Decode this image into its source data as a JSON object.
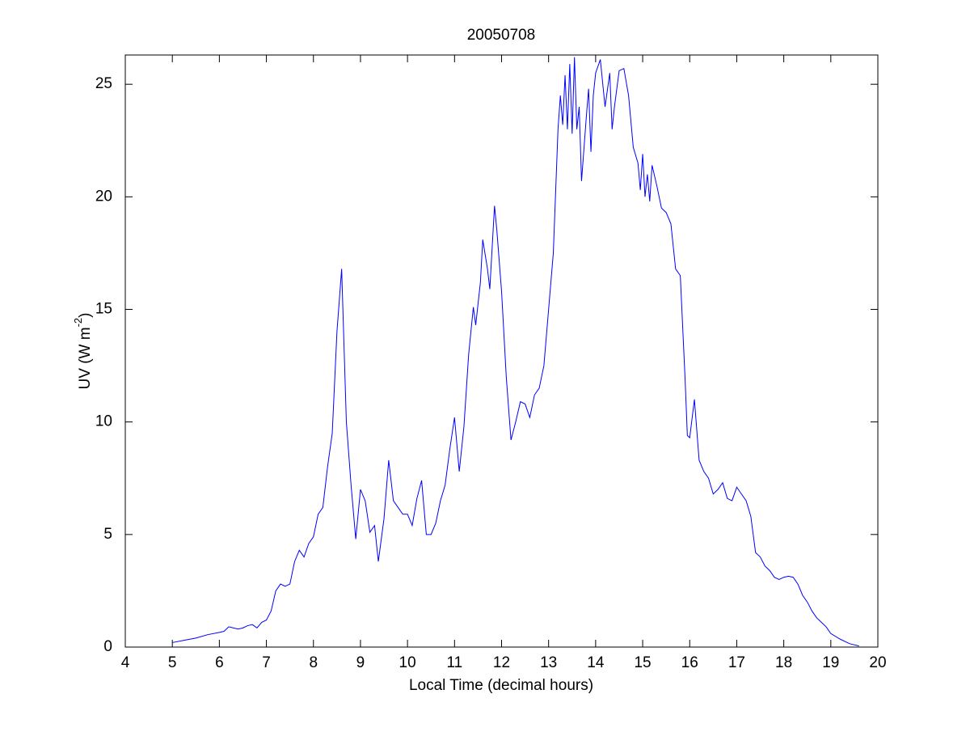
{
  "chart_data": {
    "type": "line",
    "title": "20050708",
    "x_label": "Local Time (decimal hours)",
    "y_label": [
      "UV (W m",
      "-2",
      ")"
    ],
    "x": [
      5.0,
      5.25,
      5.5,
      5.75,
      6.0,
      6.1,
      6.2,
      6.3,
      6.4,
      6.5,
      6.6,
      6.7,
      6.8,
      6.9,
      7.0,
      7.1,
      7.2,
      7.3,
      7.4,
      7.5,
      7.6,
      7.7,
      7.8,
      7.9,
      8.0,
      8.1,
      8.2,
      8.3,
      8.4,
      8.5,
      8.6,
      8.7,
      8.8,
      8.9,
      9.0,
      9.1,
      9.2,
      9.3,
      9.38,
      9.5,
      9.6,
      9.7,
      9.8,
      9.9,
      10.0,
      10.1,
      10.2,
      10.3,
      10.4,
      10.5,
      10.6,
      10.7,
      10.8,
      10.9,
      11.0,
      11.1,
      11.2,
      11.3,
      11.4,
      11.45,
      11.55,
      11.6,
      11.7,
      11.75,
      11.85,
      11.9,
      12.0,
      12.1,
      12.2,
      12.3,
      12.4,
      12.5,
      12.6,
      12.7,
      12.8,
      12.9,
      13.0,
      13.1,
      13.2,
      13.25,
      13.3,
      13.35,
      13.4,
      13.45,
      13.5,
      13.55,
      13.6,
      13.65,
      13.7,
      13.8,
      13.85,
      13.9,
      13.95,
      14.0,
      14.1,
      14.2,
      14.3,
      14.35,
      14.4,
      14.5,
      14.6,
      14.7,
      14.8,
      14.9,
      14.95,
      15.0,
      15.05,
      15.1,
      15.15,
      15.2,
      15.3,
      15.4,
      15.5,
      15.6,
      15.7,
      15.8,
      15.9,
      15.95,
      16.0,
      16.1,
      16.2,
      16.3,
      16.4,
      16.5,
      16.6,
      16.7,
      16.8,
      16.9,
      17.0,
      17.1,
      17.2,
      17.3,
      17.4,
      17.5,
      17.6,
      17.7,
      17.8,
      17.9,
      18.0,
      18.1,
      18.2,
      18.3,
      18.4,
      18.5,
      18.6,
      18.7,
      18.8,
      18.9,
      19.0,
      19.2,
      19.4,
      19.6
    ],
    "series": [
      {
        "color": "#0000ff",
        "values": [
          0.2,
          0.3,
          0.4,
          0.55,
          0.65,
          0.7,
          0.9,
          0.85,
          0.8,
          0.85,
          0.95,
          1.0,
          0.85,
          1.1,
          1.2,
          1.6,
          2.5,
          2.8,
          2.7,
          2.8,
          3.8,
          4.3,
          4.0,
          4.6,
          4.9,
          5.9,
          6.2,
          8.0,
          9.5,
          14.0,
          16.8,
          10.0,
          7.2,
          4.8,
          7.0,
          6.5,
          5.1,
          5.4,
          3.8,
          5.7,
          8.3,
          6.5,
          6.2,
          5.9,
          5.9,
          5.4,
          6.6,
          7.4,
          5.0,
          5.0,
          5.5,
          6.5,
          7.2,
          8.8,
          10.2,
          7.8,
          9.8,
          13.0,
          15.1,
          14.3,
          16.2,
          18.1,
          16.8,
          15.9,
          19.6,
          18.5,
          15.8,
          12.0,
          9.2,
          10.0,
          10.9,
          10.8,
          10.2,
          11.2,
          11.5,
          12.5,
          15.0,
          17.5,
          23.0,
          24.5,
          23.2,
          25.4,
          23.0,
          25.9,
          22.8,
          26.2,
          23.0,
          24.0,
          20.7,
          23.5,
          24.8,
          22.0,
          24.5,
          25.5,
          26.1,
          24.0,
          25.5,
          23.0,
          24.0,
          25.6,
          25.7,
          24.5,
          22.2,
          21.5,
          20.3,
          21.9,
          20.0,
          21.0,
          19.8,
          21.4,
          20.5,
          19.5,
          19.3,
          18.8,
          16.8,
          16.5,
          12.0,
          9.4,
          9.3,
          11.0,
          8.3,
          7.8,
          7.5,
          6.8,
          7.0,
          7.3,
          6.6,
          6.5,
          7.1,
          6.8,
          6.5,
          5.8,
          4.2,
          4.0,
          3.6,
          3.4,
          3.1,
          3.0,
          3.1,
          3.15,
          3.1,
          2.8,
          2.3,
          2.0,
          1.6,
          1.3,
          1.1,
          0.9,
          0.6,
          0.35,
          0.15,
          0.05
        ]
      }
    ],
    "xlim": [
      4,
      20
    ],
    "xticks": [
      4,
      5,
      6,
      7,
      8,
      9,
      10,
      11,
      12,
      13,
      14,
      15,
      16,
      17,
      18,
      19,
      20
    ],
    "ylim": [
      0,
      26.3
    ],
    "yticks": [
      0,
      5,
      10,
      15,
      20,
      25
    ]
  }
}
